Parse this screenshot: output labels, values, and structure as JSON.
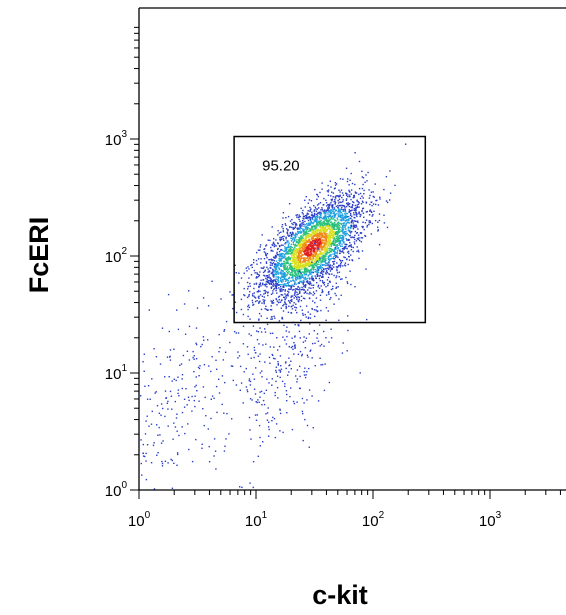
{
  "chart_data": {
    "type": "scatter",
    "title": "",
    "xlabel": "c-kit",
    "ylabel": "FcERI",
    "xscale": "log",
    "yscale": "log",
    "xlim": [
      1,
      10000
    ],
    "ylim": [
      1,
      10000
    ],
    "x_ticks": [
      {
        "base": "10",
        "exp": "0",
        "value": 1
      },
      {
        "base": "10",
        "exp": "1",
        "value": 10
      },
      {
        "base": "10",
        "exp": "2",
        "value": 100
      },
      {
        "base": "10",
        "exp": "3",
        "value": 1000
      }
    ],
    "y_ticks": [
      {
        "base": "10",
        "exp": "0",
        "value": 1
      },
      {
        "base": "10",
        "exp": "1",
        "value": 10
      },
      {
        "base": "10",
        "exp": "2",
        "value": 100
      },
      {
        "base": "10",
        "exp": "3",
        "value": 1000
      }
    ],
    "grid": false,
    "gate": {
      "label": "95.20",
      "x_range": [
        6.5,
        280
      ],
      "y_range": [
        27,
        1050
      ]
    },
    "density_colors": [
      "#2a3ec8",
      "#1f9fe0",
      "#28c07a",
      "#d8e020",
      "#f08a1a",
      "#e02020"
    ],
    "populations": [
      {
        "name_hidden": true,
        "center": [
          30,
          120
        ],
        "spread_decades": [
          0.22,
          0.22
        ],
        "points": 3600
      },
      {
        "name_hidden": true,
        "center": [
          2,
          5
        ],
        "spread_decades": [
          0.35,
          0.5
        ],
        "points": 300
      },
      {
        "name_hidden": true,
        "center": [
          20,
          15
        ],
        "spread_decades": [
          0.25,
          0.45
        ],
        "points": 350
      }
    ]
  }
}
